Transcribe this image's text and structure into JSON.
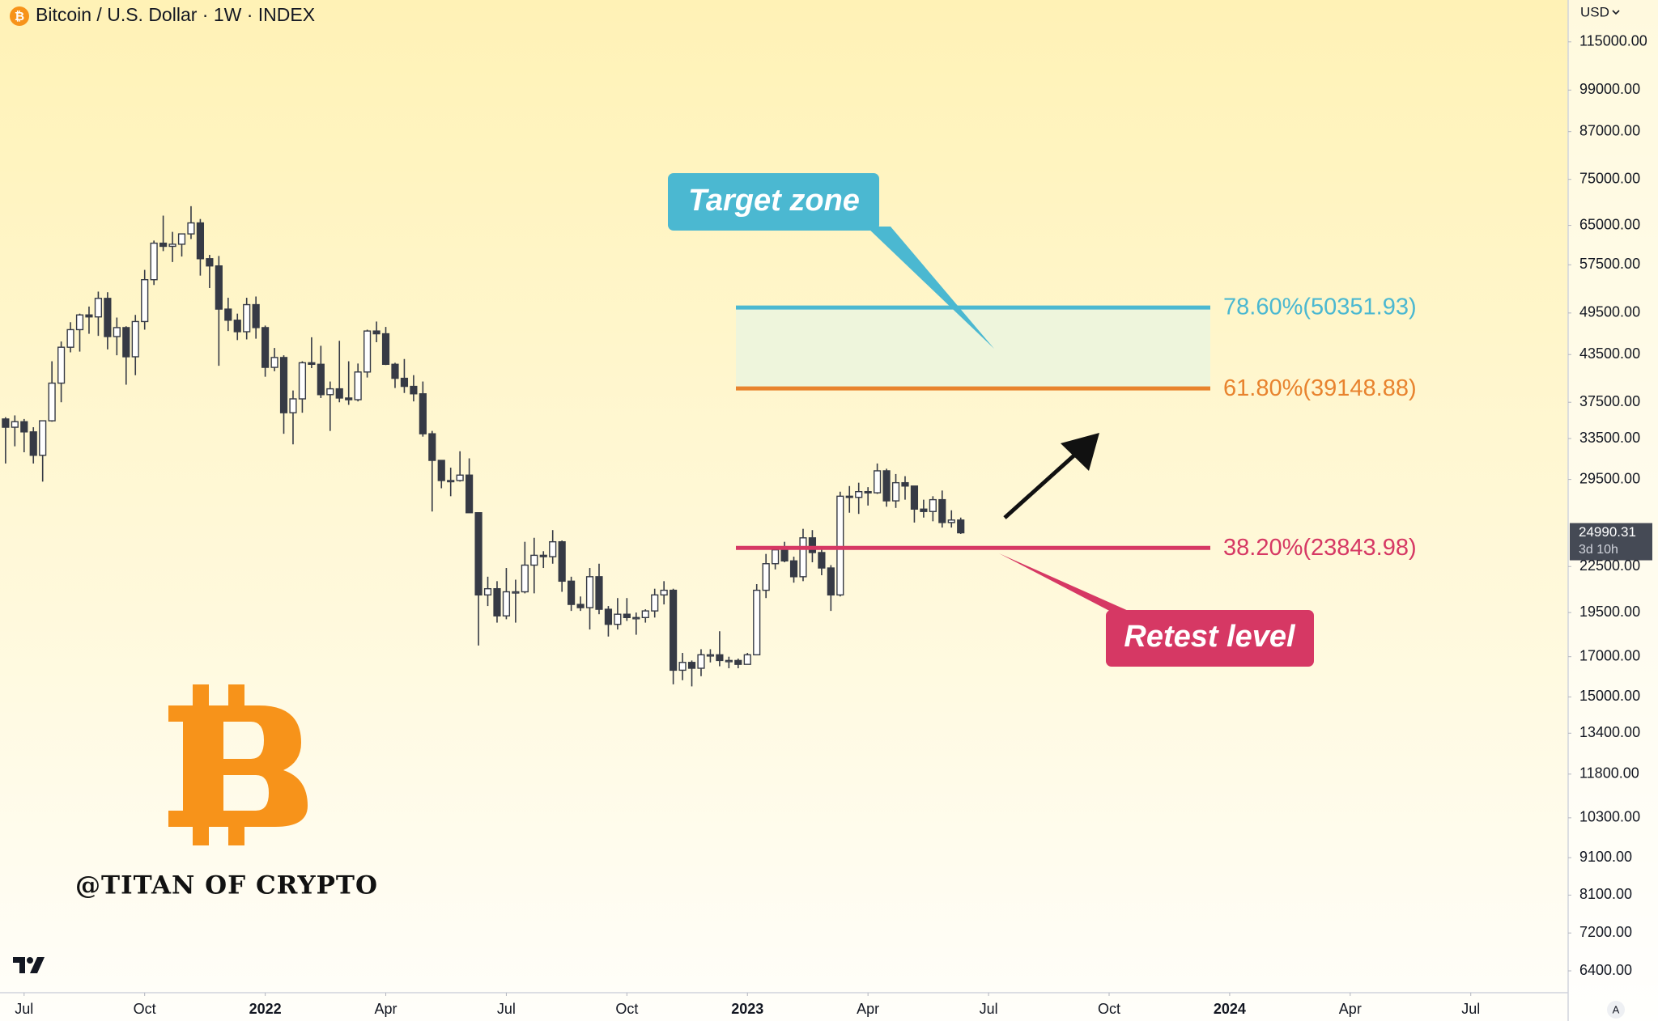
{
  "chart_data": {
    "type": "candlestick",
    "title": "Bitcoin / U.S. Dollar · 1W · INDEX",
    "currency": "USD",
    "auto_button": "A",
    "log_scale": true,
    "grid": false,
    "ylim": [
      5980,
      131000
    ],
    "yticks": [
      {
        "value": 115000,
        "label": "115000.00"
      },
      {
        "value": 99000,
        "label": "99000.00"
      },
      {
        "value": 87000,
        "label": "87000.00"
      },
      {
        "value": 75000,
        "label": "75000.00"
      },
      {
        "value": 65000,
        "label": "65000.00"
      },
      {
        "value": 57500,
        "label": "57500.00"
      },
      {
        "value": 49500,
        "label": "49500.00"
      },
      {
        "value": 43500,
        "label": "43500.00"
      },
      {
        "value": 37500,
        "label": "37500.00"
      },
      {
        "value": 33500,
        "label": "33500.00"
      },
      {
        "value": 29500,
        "label": "29500.00"
      },
      {
        "value": 22500,
        "label": "22500.00"
      },
      {
        "value": 19500,
        "label": "19500.00"
      },
      {
        "value": 17000,
        "label": "17000.00"
      },
      {
        "value": 15000,
        "label": "15000.00"
      },
      {
        "value": 13400,
        "label": "13400.00"
      },
      {
        "value": 11800,
        "label": "11800.00"
      },
      {
        "value": 10300,
        "label": "10300.00"
      },
      {
        "value": 9100,
        "label": "9100.00"
      },
      {
        "value": 8100,
        "label": "8100.00"
      },
      {
        "value": 7200,
        "label": "7200.00"
      },
      {
        "value": 6400,
        "label": "6400.00"
      }
    ],
    "xlim": [
      -0.6,
      168.5
    ],
    "xticks": [
      {
        "value": 2,
        "label": "Jul"
      },
      {
        "value": 15,
        "label": "Oct"
      },
      {
        "value": 28,
        "label": "2022"
      },
      {
        "value": 41,
        "label": "Apr"
      },
      {
        "value": 54,
        "label": "Jul"
      },
      {
        "value": 67,
        "label": "Oct"
      },
      {
        "value": 80,
        "label": "2023"
      },
      {
        "value": 93,
        "label": "Apr"
      },
      {
        "value": 106,
        "label": "Jul"
      },
      {
        "value": 119,
        "label": "Oct"
      },
      {
        "value": 132,
        "label": "2024"
      },
      {
        "value": 145,
        "label": "Apr"
      },
      {
        "value": 158,
        "label": "Jul"
      }
    ],
    "up_color": "#ffffff",
    "down_color": "#363a45",
    "candles": [
      [
        35600,
        35800,
        31000,
        34700
      ],
      [
        34700,
        36000,
        32700,
        35300
      ],
      [
        35300,
        35600,
        32100,
        34200
      ],
      [
        34200,
        34700,
        31000,
        31800
      ],
      [
        31800,
        35400,
        29300,
        35400
      ],
      [
        35400,
        42600,
        35300,
        39800
      ],
      [
        39800,
        45300,
        37500,
        44500
      ],
      [
        44500,
        48100,
        43800,
        47000
      ],
      [
        47000,
        49400,
        43900,
        49200
      ],
      [
        49200,
        50500,
        46400,
        48900
      ],
      [
        48900,
        52900,
        46100,
        51800
      ],
      [
        51800,
        52800,
        44200,
        46000
      ],
      [
        46000,
        48800,
        43400,
        47300
      ],
      [
        47300,
        47500,
        39600,
        43200
      ],
      [
        43200,
        49200,
        40800,
        48200
      ],
      [
        48200,
        56600,
        47000,
        54900
      ],
      [
        54900,
        62000,
        54000,
        61500
      ],
      [
        61500,
        67000,
        60000,
        60900
      ],
      [
        60900,
        63700,
        58000,
        61300
      ],
      [
        61300,
        63300,
        59000,
        63300
      ],
      [
        63300,
        69000,
        62300,
        65500
      ],
      [
        65500,
        66300,
        55600,
        58600
      ],
      [
        58600,
        59300,
        53500,
        57300
      ],
      [
        57300,
        59100,
        42000,
        50100
      ],
      [
        50100,
        51900,
        46800,
        48400
      ],
      [
        48400,
        49400,
        45500,
        46700
      ],
      [
        46700,
        51900,
        45600,
        50800
      ],
      [
        50800,
        52100,
        45700,
        47300
      ],
      [
        47300,
        47600,
        40600,
        41800
      ],
      [
        41800,
        44400,
        41300,
        43100
      ],
      [
        43100,
        43400,
        34000,
        36300
      ],
      [
        36300,
        38900,
        32900,
        37900
      ],
      [
        37900,
        42600,
        36300,
        42400
      ],
      [
        42400,
        45900,
        41700,
        42200
      ],
      [
        42200,
        44700,
        38000,
        38400
      ],
      [
        38400,
        40000,
        34300,
        39100
      ],
      [
        39100,
        45400,
        37500,
        38000
      ],
      [
        38000,
        42600,
        37200,
        37800
      ],
      [
        37800,
        42300,
        37600,
        41200
      ],
      [
        41200,
        47000,
        40500,
        46800
      ],
      [
        46800,
        48200,
        45200,
        46400
      ],
      [
        46400,
        47400,
        42100,
        42200
      ],
      [
        42200,
        42400,
        39200,
        40400
      ],
      [
        40400,
        42900,
        38600,
        39400
      ],
      [
        39400,
        40800,
        37600,
        38500
      ],
      [
        38500,
        40000,
        33700,
        34000
      ],
      [
        34000,
        34300,
        26700,
        31300
      ],
      [
        31300,
        31300,
        28700,
        29400
      ],
      [
        29400,
        30600,
        28000,
        29400
      ],
      [
        29400,
        32200,
        29300,
        29900
      ],
      [
        29900,
        31500,
        26600,
        26600
      ],
      [
        26600,
        26600,
        17600,
        20600
      ],
      [
        20600,
        21800,
        19900,
        21000
      ],
      [
        21000,
        21500,
        18900,
        19300
      ],
      [
        19300,
        22400,
        19100,
        20800
      ],
      [
        20800,
        21600,
        18900,
        20800
      ],
      [
        20800,
        24300,
        20700,
        22600
      ],
      [
        22600,
        24600,
        20700,
        23300
      ],
      [
        23300,
        23600,
        22400,
        23200
      ],
      [
        23200,
        25200,
        22700,
        24300
      ],
      [
        24300,
        24400,
        20800,
        21500
      ],
      [
        21500,
        21800,
        19600,
        20000
      ],
      [
        20000,
        20500,
        19600,
        19800
      ],
      [
        19800,
        22400,
        18500,
        21800
      ],
      [
        21800,
        22700,
        19400,
        19700
      ],
      [
        19700,
        19900,
        18100,
        18800
      ],
      [
        18800,
        20400,
        18500,
        19400
      ],
      [
        19400,
        20400,
        19000,
        19200
      ],
      [
        19200,
        19500,
        18200,
        19200
      ],
      [
        19200,
        19700,
        18900,
        19600
      ],
      [
        19600,
        21000,
        19200,
        20600
      ],
      [
        20600,
        21500,
        20000,
        20900
      ],
      [
        20900,
        21000,
        15600,
        16300
      ],
      [
        16300,
        17200,
        15800,
        16700
      ],
      [
        16700,
        16800,
        15500,
        16400
      ],
      [
        16400,
        17400,
        16000,
        17100
      ],
      [
        17100,
        17400,
        16700,
        17100
      ],
      [
        17100,
        18400,
        16500,
        16800
      ],
      [
        16800,
        17000,
        16400,
        16800
      ],
      [
        16800,
        16900,
        16400,
        16600
      ],
      [
        16600,
        17200,
        16600,
        17100
      ],
      [
        17100,
        21300,
        17100,
        20900
      ],
      [
        20900,
        23400,
        20400,
        22700
      ],
      [
        22700,
        23800,
        22300,
        23700
      ],
      [
        23700,
        24300,
        22800,
        22900
      ],
      [
        22900,
        23200,
        21400,
        21800
      ],
      [
        21800,
        25300,
        21500,
        24600
      ],
      [
        24600,
        25200,
        22800,
        23500
      ],
      [
        23500,
        23900,
        21900,
        22400
      ],
      [
        22400,
        22600,
        19600,
        20600
      ],
      [
        20600,
        28400,
        20500,
        28000
      ],
      [
        28000,
        28900,
        26600,
        27900
      ],
      [
        27900,
        29200,
        26500,
        28400
      ],
      [
        28400,
        28800,
        27200,
        28300
      ],
      [
        28300,
        31000,
        28200,
        30300
      ],
      [
        30300,
        30500,
        27100,
        27600
      ],
      [
        27600,
        30000,
        27000,
        29200
      ],
      [
        29200,
        29800,
        27700,
        28900
      ],
      [
        28900,
        28900,
        25800,
        26900
      ],
      [
        26900,
        27700,
        26200,
        26700
      ],
      [
        26700,
        28000,
        25900,
        27700
      ],
      [
        27700,
        28500,
        25400,
        25800
      ],
      [
        25800,
        26800,
        25400,
        26000
      ],
      [
        26000,
        26200,
        24900,
        24990.31
      ]
    ],
    "countdown": "3d 10h",
    "fib_levels": [
      {
        "value": 50351.93,
        "label": "78.60%(50351.93)",
        "color": "#4bb8d1"
      },
      {
        "value": 39148.88,
        "label": "61.80%(39148.88)",
        "color": "#e8832e"
      },
      {
        "value": 23843.98,
        "label": "38.20%(23843.98)",
        "color": "#d63864"
      }
    ],
    "zone_color": "#eef5dc",
    "annotations": [
      {
        "text": "Target zone",
        "color": "#4bb8d1"
      },
      {
        "text": "Retest level",
        "color": "#d63864"
      }
    ],
    "watermark": "@TITAN OF CRYPTO"
  }
}
